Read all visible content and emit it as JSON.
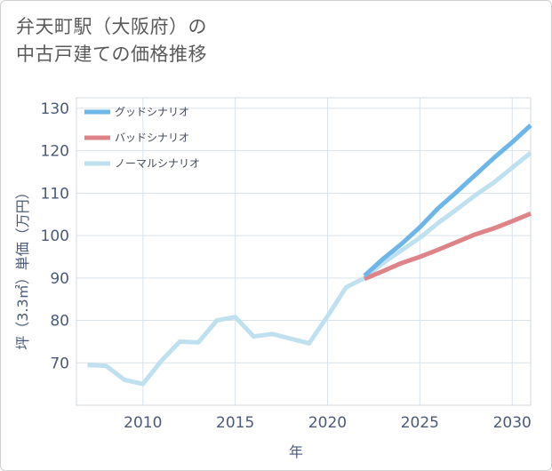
{
  "title": "弁天町駅（大阪府）の\n中古戸建ての価格推移",
  "chart_data": {
    "type": "line",
    "title": "弁天町駅（大阪府）の中古戸建ての価格推移",
    "xlabel": "年",
    "ylabel": "坪（3.3㎡）単価（万円）",
    "xlim": [
      2006.4,
      2031
    ],
    "ylim": [
      60,
      132.5
    ],
    "x_ticks": [
      2010,
      2015,
      2020,
      2025,
      2030
    ],
    "y_ticks": [
      70,
      80,
      90,
      100,
      110,
      120,
      130
    ],
    "grid": true,
    "legend_position": "top-left",
    "series": [
      {
        "name": "グッドシナリオ",
        "color": "#6cb6ea",
        "x": [
          2022,
          2023,
          2024,
          2025,
          2026,
          2027,
          2028,
          2029,
          2030,
          2031
        ],
        "values": [
          90.5,
          94.5,
          98,
          102,
          106.5,
          110.3,
          114.3,
          118.3,
          122,
          126
        ]
      },
      {
        "name": "バッドシナリオ",
        "color": "#de8488",
        "x": [
          2022,
          2023,
          2024,
          2025,
          2026,
          2027,
          2028,
          2029,
          2030,
          2031
        ],
        "values": [
          89.8,
          91.6,
          93.5,
          95,
          96.7,
          98.5,
          100.3,
          101.7,
          103.4,
          105.2
        ]
      },
      {
        "name": "ノーマルシナリオ",
        "color": "#bfe0ee",
        "x": [
          2007,
          2008,
          2009,
          2010,
          2011,
          2012,
          2013,
          2014,
          2015,
          2016,
          2017,
          2018,
          2019,
          2020,
          2021,
          2022,
          2023,
          2024,
          2025,
          2026,
          2027,
          2028,
          2029,
          2030,
          2031
        ],
        "values": [
          69.5,
          69.3,
          66,
          65,
          70.5,
          75,
          74.8,
          80,
          80.8,
          76.2,
          76.8,
          75.7,
          74.6,
          81,
          87.8,
          90,
          93.5,
          96.5,
          99.5,
          103,
          106.2,
          109.5,
          112.5,
          116,
          119.5
        ]
      }
    ]
  }
}
